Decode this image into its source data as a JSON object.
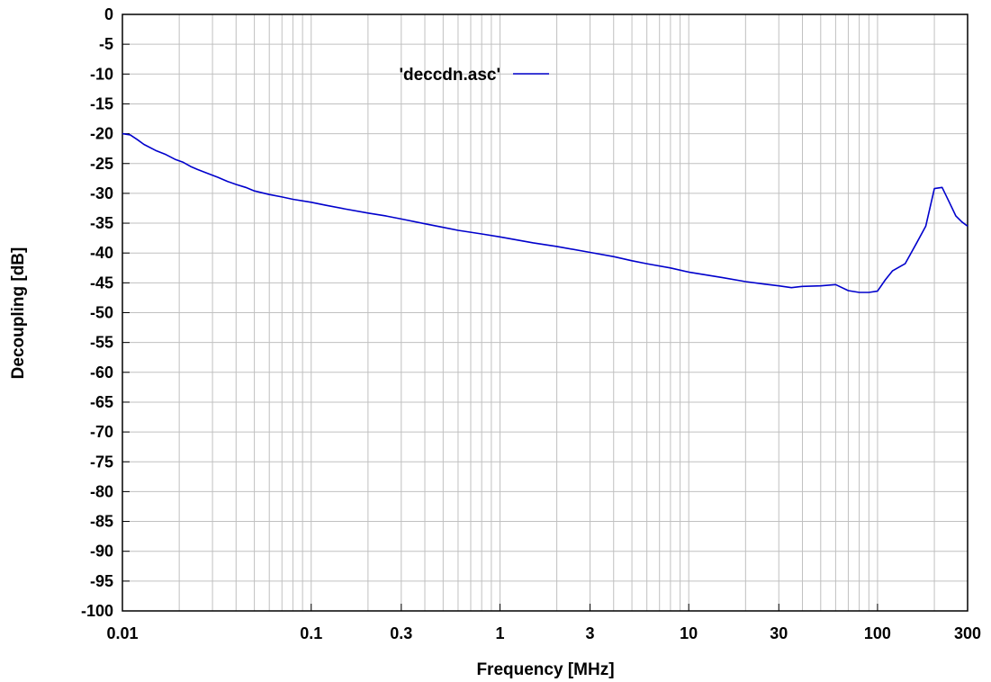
{
  "chart_data": {
    "type": "line",
    "title": "",
    "xlabel": "Frequency [MHz]",
    "ylabel": "Decoupling [dB]",
    "x_scale": "log",
    "xlim": [
      0.01,
      300
    ],
    "ylim": [
      -100,
      0
    ],
    "grid": true,
    "legend_position": "top-center",
    "x_tick_labels": [
      {
        "value": 0.01,
        "label": "0.01"
      },
      {
        "value": 0.1,
        "label": "0.1"
      },
      {
        "value": 0.3,
        "label": "0.3"
      },
      {
        "value": 1,
        "label": "1"
      },
      {
        "value": 3,
        "label": "3"
      },
      {
        "value": 10,
        "label": "10"
      },
      {
        "value": 30,
        "label": "30"
      },
      {
        "value": 100,
        "label": "100"
      },
      {
        "value": 300,
        "label": "300"
      }
    ],
    "y_ticks": [
      0,
      -5,
      -10,
      -15,
      -20,
      -25,
      -30,
      -35,
      -40,
      -45,
      -50,
      -55,
      -60,
      -65,
      -70,
      -75,
      -80,
      -85,
      -90,
      -95,
      -100
    ],
    "series": [
      {
        "name": "'deccdn.asc'",
        "color": "#0000cc",
        "x": [
          0.01,
          0.011,
          0.012,
          0.013,
          0.015,
          0.017,
          0.019,
          0.021,
          0.023,
          0.025,
          0.028,
          0.032,
          0.036,
          0.04,
          0.045,
          0.05,
          0.06,
          0.07,
          0.08,
          0.1,
          0.12,
          0.15,
          0.2,
          0.25,
          0.3,
          0.4,
          0.5,
          0.6,
          0.8,
          1,
          1.5,
          2,
          3,
          4,
          5,
          6,
          8,
          10,
          15,
          20,
          25,
          30,
          35,
          40,
          50,
          60,
          70,
          80,
          90,
          100,
          110,
          120,
          140,
          160,
          180,
          200,
          220,
          240,
          260,
          280,
          300
        ],
        "y": [
          -20,
          -20.2,
          -21,
          -21.8,
          -22.8,
          -23.5,
          -24.3,
          -24.8,
          -25.5,
          -26,
          -26.6,
          -27.3,
          -28,
          -28.5,
          -29,
          -29.6,
          -30.2,
          -30.6,
          -31,
          -31.5,
          -32,
          -32.6,
          -33.3,
          -33.8,
          -34.3,
          -35.1,
          -35.7,
          -36.2,
          -36.8,
          -37.3,
          -38.3,
          -38.9,
          -39.9,
          -40.6,
          -41.3,
          -41.8,
          -42.5,
          -43.2,
          -44.1,
          -44.8,
          -45.2,
          -45.5,
          -45.8,
          -45.6,
          -45.5,
          -45.3,
          -46.3,
          -46.6,
          -46.6,
          -46.4,
          -44.5,
          -43,
          -41.8,
          -38.5,
          -35.5,
          -29.2,
          -29,
          -31.5,
          -33.8,
          -34.8,
          -35.5
        ]
      }
    ]
  }
}
